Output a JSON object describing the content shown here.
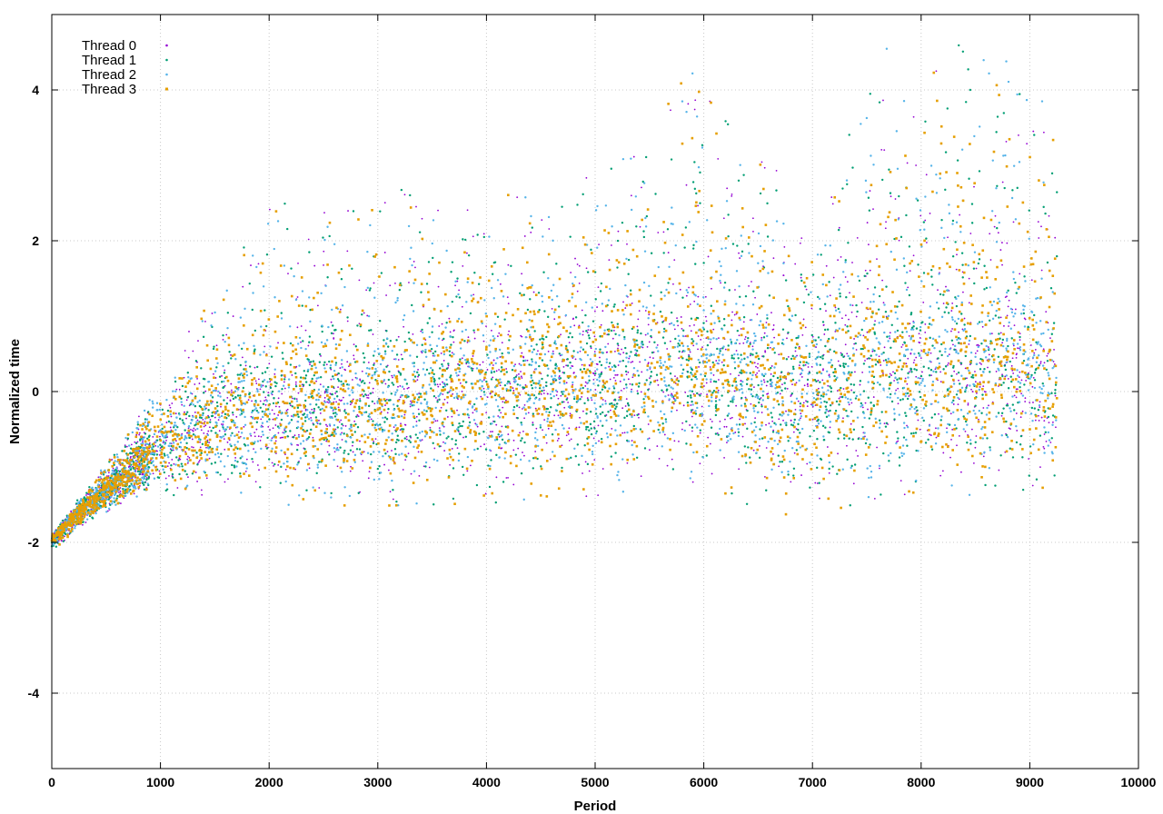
{
  "chart_data": {
    "type": "scatter",
    "title": "",
    "xlabel": "Period",
    "ylabel": "Normalized time",
    "xlim": [
      0,
      10000
    ],
    "ylim": [
      -5,
      5
    ],
    "x_ticks": [
      0,
      1000,
      2000,
      3000,
      4000,
      5000,
      6000,
      7000,
      8000,
      9000,
      10000
    ],
    "x_tick_labels": [
      "0",
      "1000",
      "2000",
      "3000",
      "4000",
      "5000",
      "6000",
      "7000",
      "8000",
      "9000",
      "10000"
    ],
    "y_ticks": [
      -4,
      -2,
      0,
      2,
      4
    ],
    "y_tick_labels": [
      "-4",
      "-2",
      "0",
      "2",
      "4"
    ],
    "grid": true,
    "legend_position": "top-left",
    "series": [
      {
        "name": "Thread 0",
        "color": "#9400d3",
        "marker": "plus-dot"
      },
      {
        "name": "Thread 1",
        "color": "#009e73",
        "marker": "dot"
      },
      {
        "name": "Thread 2",
        "color": "#56b4e9",
        "marker": "dot"
      },
      {
        "name": "Thread 3",
        "color": "#e69f00",
        "marker": "square"
      }
    ],
    "trend_profile": {
      "x": [
        0,
        200,
        400,
        700,
        1000,
        1500,
        2000,
        3000,
        4000,
        5000,
        6000,
        6500,
        7000,
        7600,
        8000,
        8500,
        9000,
        9250
      ],
      "median_y": [
        -2.0,
        -1.7,
        -1.45,
        -1.1,
        -0.8,
        -0.45,
        -0.35,
        -0.25,
        -0.1,
        0.0,
        0.2,
        0.0,
        -0.15,
        0.2,
        0.15,
        0.25,
        0.2,
        0.0
      ],
      "spread_low": [
        0.1,
        0.15,
        0.2,
        0.3,
        0.5,
        0.8,
        1.0,
        1.1,
        1.2,
        1.2,
        1.2,
        1.4,
        1.3,
        1.4,
        1.4,
        1.4,
        1.3,
        1.2
      ],
      "spread_high": [
        0.1,
        0.2,
        0.3,
        0.6,
        1.0,
        1.8,
        2.9,
        3.0,
        2.7,
        3.0,
        4.2,
        3.5,
        2.3,
        4.6,
        4.3,
        4.5,
        4.0,
        3.5
      ]
    },
    "x_max_data": 9250,
    "points_per_series": 2200
  }
}
